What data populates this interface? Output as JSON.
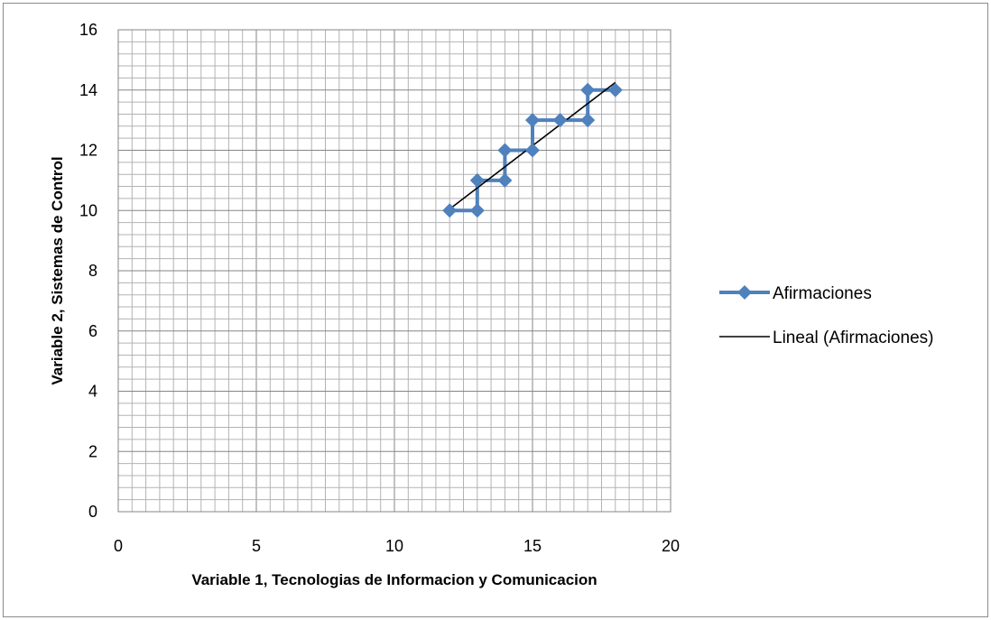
{
  "chart_data": {
    "type": "scatter",
    "title": "",
    "xlabel": "Variable 1, Tecnologias de Informacion y Comunicacion",
    "ylabel": "Variable 2,  Sistemas de Control",
    "xlim": [
      0,
      20
    ],
    "ylim": [
      0,
      16
    ],
    "x_ticks": [
      "0",
      "5",
      "10",
      "15",
      "20"
    ],
    "y_ticks": [
      "0",
      "2",
      "4",
      "6",
      "8",
      "10",
      "12",
      "14",
      "16"
    ],
    "grid": true,
    "legend_position": "right",
    "series": [
      {
        "name": "Afirmaciones",
        "style": "line-with-diamond-markers",
        "color": "#4f81bd",
        "x": [
          12,
          13,
          13,
          14,
          14,
          15,
          15,
          16,
          17,
          17,
          18
        ],
        "y": [
          10,
          10,
          11,
          11,
          12,
          12,
          13,
          13,
          13,
          14,
          14
        ]
      },
      {
        "name": "Lineal (Afirmaciones)",
        "style": "trendline",
        "color": "#000000",
        "x": [
          12,
          18
        ],
        "y": [
          10.05,
          14.25
        ]
      }
    ]
  }
}
